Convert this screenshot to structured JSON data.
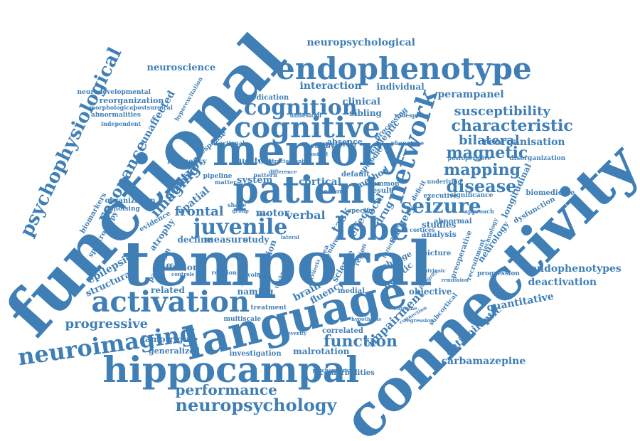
{
  "accent_color": "#3f7fb6",
  "background_color": "#ffffff",
  "words": [
    {
      "text": "functional"
    },
    {
      "text": "temporal"
    },
    {
      "text": "connectivity"
    },
    {
      "text": "language"
    },
    {
      "text": "memory"
    },
    {
      "text": "patient"
    },
    {
      "text": "hippocampal"
    },
    {
      "text": "endophenotype"
    },
    {
      "text": "cognitive"
    },
    {
      "text": "activation"
    },
    {
      "text": "neuroimaging"
    },
    {
      "text": "network"
    },
    {
      "text": "lobe"
    },
    {
      "text": "juvenile"
    },
    {
      "text": "seizure"
    },
    {
      "text": "cognition"
    },
    {
      "text": "psychophysiological"
    },
    {
      "text": "neuropsychology"
    },
    {
      "text": "characteristic"
    },
    {
      "text": "disease"
    },
    {
      "text": "susceptibility"
    },
    {
      "text": "mapping"
    },
    {
      "text": "magnetic"
    },
    {
      "text": "bilateral"
    },
    {
      "text": "function"
    },
    {
      "text": "performance"
    },
    {
      "text": "resonance"
    },
    {
      "text": "progressive"
    },
    {
      "text": "imaging"
    },
    {
      "text": "frontal"
    },
    {
      "text": "neuropsychological"
    },
    {
      "text": "deactivation"
    },
    {
      "text": "endophenotypes"
    },
    {
      "text": "quantitative"
    },
    {
      "text": "carbamazepine"
    },
    {
      "text": "antiepileptic"
    },
    {
      "text": "impairment"
    },
    {
      "text": "reorganisation"
    },
    {
      "text": "perampanel"
    },
    {
      "text": "interaction"
    },
    {
      "text": "neuroscience"
    },
    {
      "text": "individual"
    },
    {
      "text": "unaffected"
    },
    {
      "text": "reorganization"
    },
    {
      "text": "sibling"
    },
    {
      "text": "clinical"
    },
    {
      "text": "control"
    },
    {
      "text": "spatial"
    },
    {
      "text": "verbal"
    },
    {
      "text": "motor"
    },
    {
      "text": "cortical"
    },
    {
      "text": "system"
    },
    {
      "text": "auditory"
    },
    {
      "text": "healthy"
    },
    {
      "text": "posterior"
    },
    {
      "text": "absence"
    },
    {
      "text": "epileptic"
    },
    {
      "text": "task"
    },
    {
      "text": "effect"
    },
    {
      "text": "drug"
    },
    {
      "text": "focal"
    },
    {
      "text": "surgery"
    },
    {
      "text": "studies"
    },
    {
      "text": "decline"
    },
    {
      "text": "measure"
    },
    {
      "text": "study"
    },
    {
      "text": "epilepsies"
    },
    {
      "text": "structural"
    },
    {
      "text": "related"
    },
    {
      "text": "naming"
    },
    {
      "text": "brain"
    },
    {
      "text": "fluency"
    },
    {
      "text": "medial"
    },
    {
      "text": "objective"
    },
    {
      "text": "generalized"
    },
    {
      "text": "lamotrigine"
    },
    {
      "text": "investigation"
    },
    {
      "text": "malrotation"
    },
    {
      "text": "correlated"
    },
    {
      "text": "comorbidities"
    },
    {
      "text": "multiscale"
    },
    {
      "text": "diffusion"
    },
    {
      "text": "duration"
    },
    {
      "text": "organization"
    },
    {
      "text": "spectroscopy"
    },
    {
      "text": "biomarkers"
    },
    {
      "text": "neurology"
    },
    {
      "text": "longitudinal"
    },
    {
      "text": "genetic"
    },
    {
      "text": "science"
    },
    {
      "text": "analysis"
    },
    {
      "text": "picture"
    },
    {
      "text": "biomedicine"
    },
    {
      "text": "dysfunction"
    },
    {
      "text": "progression"
    },
    {
      "text": "abnormal"
    },
    {
      "text": "executive"
    },
    {
      "text": "significance"
    },
    {
      "text": "underlying"
    },
    {
      "text": "disorganization"
    },
    {
      "text": "frequency"
    },
    {
      "text": "pipeline"
    },
    {
      "text": "matter"
    },
    {
      "text": "medication"
    },
    {
      "text": "undesired"
    },
    {
      "text": "processing"
    },
    {
      "text": "widespread"
    },
    {
      "text": "phenotype"
    },
    {
      "text": "episodic"
    },
    {
      "text": "method"
    },
    {
      "text": "default"
    },
    {
      "text": "result"
    },
    {
      "text": "common"
    },
    {
      "text": "person"
    },
    {
      "text": "specific"
    },
    {
      "text": "neurodevelopmental"
    },
    {
      "text": "morphological"
    },
    {
      "text": "postsurgical"
    },
    {
      "text": "abnormalities"
    },
    {
      "text": "independent"
    },
    {
      "text": "hyperexcitation"
    },
    {
      "text": "response"
    },
    {
      "text": "sectional"
    },
    {
      "text": "denoising"
    },
    {
      "text": "evidence"
    },
    {
      "text": "atrophy"
    },
    {
      "text": "paradigm"
    },
    {
      "text": "treatment"
    },
    {
      "text": "syndrome"
    },
    {
      "text": "change"
    },
    {
      "text": "region"
    },
    {
      "text": "area"
    },
    {
      "text": "approach"
    },
    {
      "text": "cortices"
    },
    {
      "text": "preoperative"
    },
    {
      "text": "recruitment"
    },
    {
      "text": "technology"
    },
    {
      "text": "subcortical"
    },
    {
      "text": "postoperative"
    },
    {
      "text": "deficit"
    },
    {
      "text": "pattern"
    },
    {
      "text": "state"
    },
    {
      "text": "shape"
    },
    {
      "text": "group"
    },
    {
      "text": "side"
    },
    {
      "text": "insight"
    },
    {
      "text": "tractography"
    },
    {
      "text": "volume"
    },
    {
      "text": "thickness"
    },
    {
      "text": "criteria"
    },
    {
      "text": "difference"
    },
    {
      "text": "outcome"
    },
    {
      "text": "connection"
    },
    {
      "text": "regression"
    },
    {
      "text": "intrinsic"
    },
    {
      "text": "relation"
    },
    {
      "text": "controls"
    },
    {
      "text": "lateral"
    },
    {
      "text": "integrity"
    },
    {
      "text": "psychometric"
    },
    {
      "text": "hypothesis"
    },
    {
      "text": "remission"
    },
    {
      "text": "modularity"
    },
    {
      "text": "severity"
    },
    {
      "text": "parietal"
    }
  ]
}
